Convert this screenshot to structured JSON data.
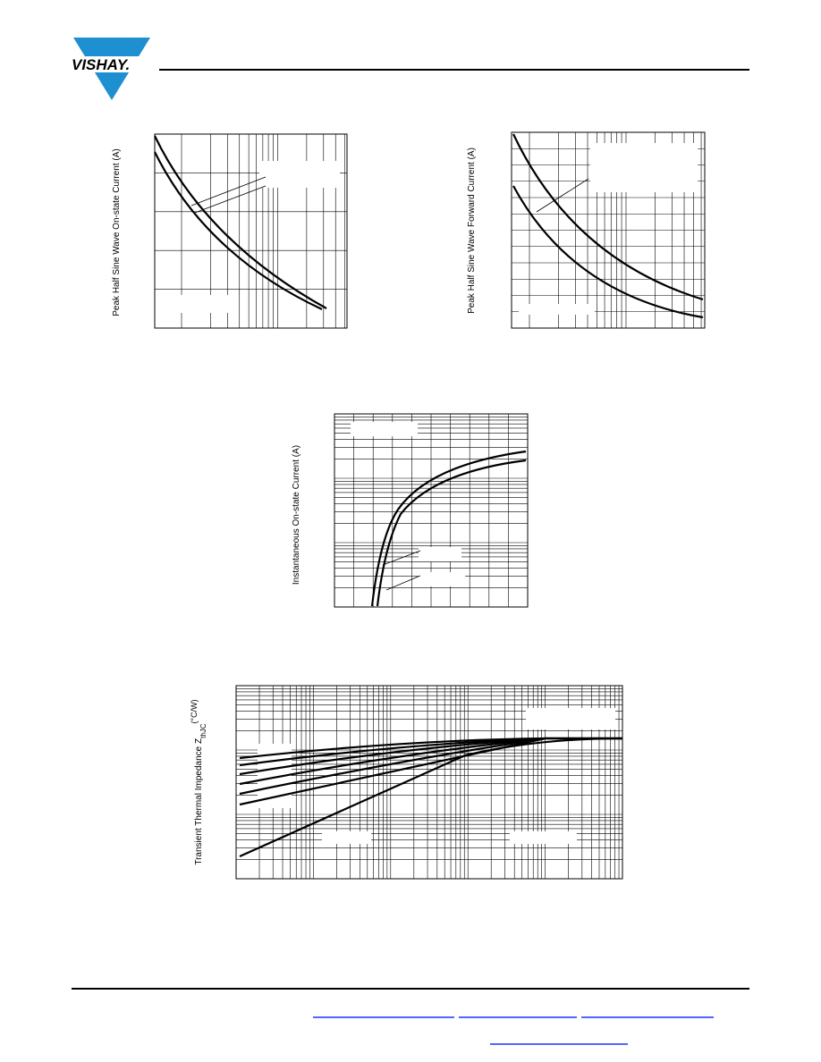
{
  "header": {
    "logo": "VISHAY."
  },
  "figures": [
    {
      "y_label": "Peak Half Sine Wave On-state Current (A)"
    },
    {
      "y_label": "Peak Half Sine Wave Forward Current (A)"
    },
    {
      "y_label": "Instantaneous On-state Current (A)"
    },
    {
      "y_label": {
        "main": "Transient Thermal Impedance Z",
        "subscript": "thJC",
        "unit": "(°C/W)"
      }
    }
  ]
}
